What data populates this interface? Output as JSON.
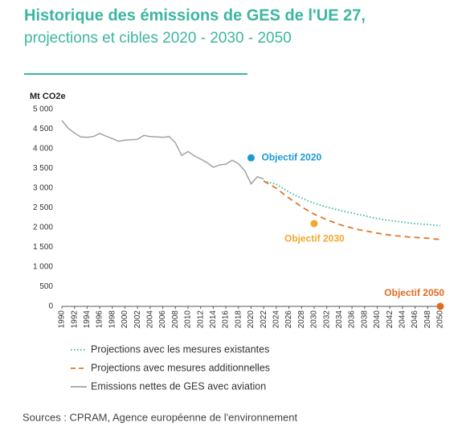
{
  "chart_data": {
    "type": "line",
    "title": "Historique des émissions de GES de l'UE 27,",
    "subtitle": "projections et cibles 2020 - 2030 - 2050",
    "y_label": "Mt CO2e",
    "source": "Sources : CPRAM, Agence européenne de l'environnement",
    "x": [
      1990,
      1991,
      1992,
      1993,
      1994,
      1995,
      1996,
      1997,
      1998,
      1999,
      2000,
      2001,
      2002,
      2003,
      2004,
      2005,
      2006,
      2007,
      2008,
      2009,
      2010,
      2011,
      2012,
      2013,
      2014,
      2015,
      2016,
      2017,
      2018,
      2019,
      2020,
      2021,
      2022,
      2023,
      2024,
      2025,
      2026,
      2027,
      2028,
      2029,
      2030,
      2031,
      2032,
      2033,
      2034,
      2035,
      2036,
      2037,
      2038,
      2039,
      2040,
      2041,
      2042,
      2043,
      2044,
      2045,
      2046,
      2047,
      2048,
      2049,
      2050
    ],
    "series": [
      {
        "name": "Projections avec les mesures existantes",
        "color": "#35b5a5",
        "style": "dotted",
        "values": [
          null,
          null,
          null,
          null,
          null,
          null,
          null,
          null,
          null,
          null,
          null,
          null,
          null,
          null,
          null,
          null,
          null,
          null,
          null,
          null,
          null,
          null,
          null,
          null,
          null,
          null,
          null,
          null,
          null,
          null,
          null,
          null,
          3180,
          3140,
          3100,
          3000,
          2900,
          2820,
          2750,
          2680,
          2620,
          2570,
          2520,
          2480,
          2440,
          2400,
          2370,
          2330,
          2300,
          2260,
          2230,
          2200,
          2180,
          2160,
          2140,
          2120,
          2100,
          2090,
          2080,
          2060,
          2050
        ]
      },
      {
        "name": "Projections avec mesures additionnelles",
        "color": "#e0772a",
        "style": "dashed",
        "values": [
          null,
          null,
          null,
          null,
          null,
          null,
          null,
          null,
          null,
          null,
          null,
          null,
          null,
          null,
          null,
          null,
          null,
          null,
          null,
          null,
          null,
          null,
          null,
          null,
          null,
          null,
          null,
          null,
          null,
          null,
          null,
          null,
          3180,
          3090,
          3000,
          2870,
          2750,
          2640,
          2530,
          2430,
          2340,
          2270,
          2200,
          2140,
          2080,
          2030,
          1990,
          1950,
          1920,
          1890,
          1860,
          1830,
          1810,
          1790,
          1780,
          1760,
          1750,
          1740,
          1730,
          1710,
          1700
        ]
      },
      {
        "name": "Emissions nettes de GES avec aviation",
        "color": "#a3a3a3",
        "style": "solid",
        "values": [
          4720,
          4520,
          4400,
          4300,
          4290,
          4310,
          4390,
          4320,
          4260,
          4190,
          4220,
          4230,
          4240,
          4340,
          4310,
          4300,
          4290,
          4310,
          4150,
          3830,
          3930,
          3820,
          3740,
          3650,
          3530,
          3590,
          3610,
          3710,
          3620,
          3440,
          3110,
          3290,
          3230,
          null,
          null,
          null,
          null,
          null,
          null,
          null,
          null,
          null,
          null,
          null,
          null,
          null,
          null,
          null,
          null,
          null,
          null,
          null,
          null,
          null,
          null,
          null,
          null,
          null,
          null,
          null,
          null
        ]
      }
    ],
    "targets": [
      {
        "name": "Objectif 2020",
        "x": 2020,
        "value": 3770,
        "color": "#1a9ad6"
      },
      {
        "name": "Objectif 2030",
        "x": 2030,
        "value": 2100,
        "color": "#f0a830"
      },
      {
        "name": "Objectif 2050",
        "x": 2050,
        "value": 0,
        "color": "#e06a20"
      }
    ],
    "xlim": [
      1990,
      2050
    ],
    "xticks": [
      1990,
      1992,
      1994,
      1996,
      1998,
      2000,
      2002,
      2004,
      2006,
      2008,
      2010,
      2012,
      2014,
      2016,
      2018,
      2020,
      2022,
      2024,
      2026,
      2028,
      2030,
      2032,
      2034,
      2036,
      2038,
      2040,
      2042,
      2044,
      2046,
      2048,
      2050
    ],
    "ylim": [
      0,
      5000
    ],
    "yticks": [
      0,
      500,
      {
        "value": 1000,
        "label": "1 000"
      },
      {
        "value": 1500,
        "label": "1 500"
      },
      {
        "value": 2000,
        "label": "2 000"
      },
      {
        "value": 2500,
        "label": "2 500"
      },
      {
        "value": 3000,
        "label": "3 000"
      },
      {
        "value": 3500,
        "label": "3 500"
      },
      {
        "value": 4000,
        "label": "4 000"
      },
      {
        "value": 4500,
        "label": "4 500"
      },
      {
        "value": 5000,
        "label": "5 000"
      }
    ],
    "grid": false
  }
}
